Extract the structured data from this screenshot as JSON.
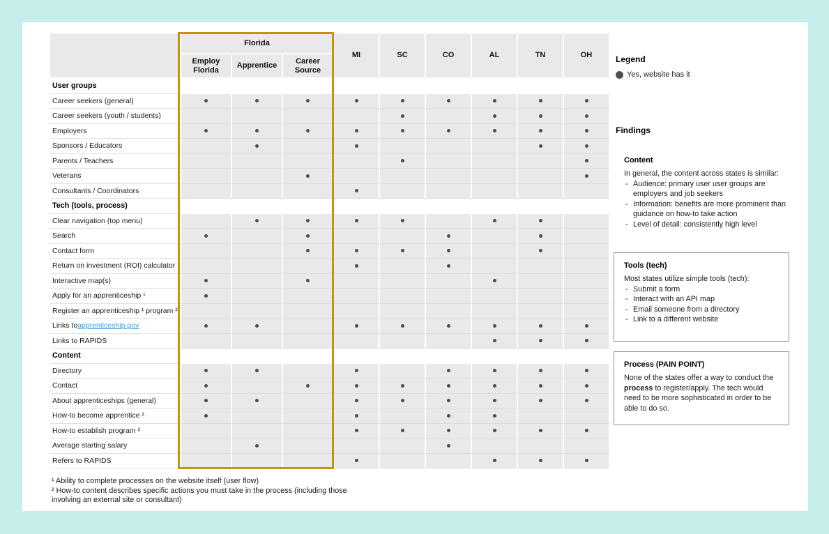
{
  "chart_data": {
    "type": "table",
    "title": "State apprenticeship website comparison matrix",
    "legend_position": "top-right",
    "column_groups": [
      {
        "label": "Florida",
        "columns": [
          "Employ Florida",
          "Apprentice",
          "Career Source"
        ]
      }
    ],
    "columns": [
      "Employ Florida",
      "Apprentice",
      "Career Source",
      "MI",
      "SC",
      "CO",
      "AL",
      "TN",
      "OH"
    ],
    "marker": "dot",
    "rows": [
      {
        "section": "User groups"
      },
      {
        "label": "Career seekers (general)",
        "values": [
          1,
          1,
          1,
          1,
          1,
          1,
          1,
          1,
          1
        ]
      },
      {
        "label": "Career seekers (youth / students)",
        "values": [
          0,
          0,
          0,
          0,
          1,
          0,
          1,
          1,
          1
        ]
      },
      {
        "label": "Employers",
        "values": [
          1,
          1,
          1,
          1,
          1,
          1,
          1,
          1,
          1
        ]
      },
      {
        "label": "Sponsors / Educators",
        "values": [
          0,
          1,
          0,
          1,
          0,
          0,
          0,
          1,
          1
        ]
      },
      {
        "label": "Parents / Teachers",
        "values": [
          0,
          0,
          0,
          0,
          1,
          0,
          0,
          0,
          1
        ]
      },
      {
        "label": "Veterans",
        "values": [
          0,
          0,
          1,
          0,
          0,
          0,
          0,
          0,
          1
        ]
      },
      {
        "label": "Consultants / Coordinators",
        "values": [
          0,
          0,
          0,
          1,
          0,
          0,
          0,
          0,
          0
        ]
      },
      {
        "section": "Tech (tools, process)"
      },
      {
        "label": "Clear navigation (top menu)",
        "values": [
          0,
          1,
          1,
          1,
          1,
          0,
          1,
          1,
          0
        ]
      },
      {
        "label": "Search",
        "values": [
          1,
          0,
          1,
          0,
          0,
          1,
          0,
          1,
          0
        ]
      },
      {
        "label": "Contact form",
        "values": [
          0,
          0,
          1,
          1,
          1,
          1,
          0,
          1,
          0
        ]
      },
      {
        "label": "Return on investment (ROI) calculator",
        "values": [
          0,
          0,
          0,
          1,
          0,
          1,
          0,
          0,
          0
        ]
      },
      {
        "label": "Interactive map(s)",
        "values": [
          1,
          0,
          1,
          0,
          0,
          0,
          1,
          0,
          0
        ]
      },
      {
        "label": "Apply for an apprenticeship ¹",
        "values": [
          1,
          0,
          0,
          0,
          0,
          0,
          0,
          0,
          0
        ]
      },
      {
        "label": "Register an apprenticeship ¹ program ²",
        "values": [
          0,
          0,
          0,
          0,
          0,
          0,
          0,
          0,
          0
        ]
      },
      {
        "label": "Links to ",
        "link_text": "apprenticeship.gov",
        "values": [
          1,
          1,
          0,
          1,
          1,
          1,
          1,
          1,
          1
        ]
      },
      {
        "label": "Links to RAPIDS",
        "values": [
          0,
          0,
          0,
          0,
          0,
          0,
          1,
          1,
          1
        ]
      },
      {
        "section": "Content"
      },
      {
        "label": "Directory",
        "values": [
          1,
          1,
          0,
          1,
          0,
          1,
          1,
          1,
          1
        ]
      },
      {
        "label": "Contact",
        "values": [
          1,
          0,
          1,
          1,
          1,
          1,
          1,
          1,
          1
        ]
      },
      {
        "label": "About apprenticeships (general)",
        "values": [
          1,
          1,
          0,
          1,
          1,
          1,
          1,
          1,
          1
        ]
      },
      {
        "label": "How-to become apprentice ²",
        "values": [
          1,
          0,
          0,
          1,
          0,
          1,
          1,
          0,
          0
        ]
      },
      {
        "label": "How-to establish program ²",
        "values": [
          0,
          0,
          0,
          1,
          1,
          1,
          1,
          1,
          1
        ]
      },
      {
        "label": "Average starting salary",
        "values": [
          0,
          1,
          0,
          0,
          0,
          1,
          0,
          0,
          0
        ]
      },
      {
        "label": "Refers to RAPIDS",
        "values": [
          0,
          0,
          0,
          1,
          0,
          0,
          1,
          1,
          1
        ]
      }
    ]
  },
  "legend": {
    "title": "Legend",
    "item": "Yes, website has it"
  },
  "findings": {
    "title": "Findings",
    "content": {
      "title": "Content",
      "intro": "In general, the content across states is similar:",
      "bullets": [
        "Audience: primary user user groups are employers and job seekers",
        "Information: benefits are more prominent than guidance on how-to take action",
        "Level of detail: consistently high level"
      ]
    },
    "tools": {
      "title": "Tools (tech)",
      "intro": "Most states utilize simple tools (tech):",
      "bullets": [
        "Submit a form",
        "Interact with an API map",
        "Email someone from a directory",
        "Link to a different website"
      ]
    },
    "process": {
      "title": "Process (PAIN POINT)",
      "body_parts": [
        "None of the states offer a way to conduct the ",
        "process",
        " to register/apply. The tech would need to be more sophisticated in order to be able to do so."
      ]
    }
  },
  "footnotes": [
    "¹ Ability to complete processes on the website itself (user flow)",
    "² How-to content describes specific actions you must take in the process (including those involving an external site or consultant)"
  ],
  "colors": {
    "background": "#c6eeea",
    "cell_gray": "#e9e9e9",
    "dot": "#494e57",
    "florida_highlight": "#c4940d",
    "link_blue": "#3d9fd6"
  }
}
